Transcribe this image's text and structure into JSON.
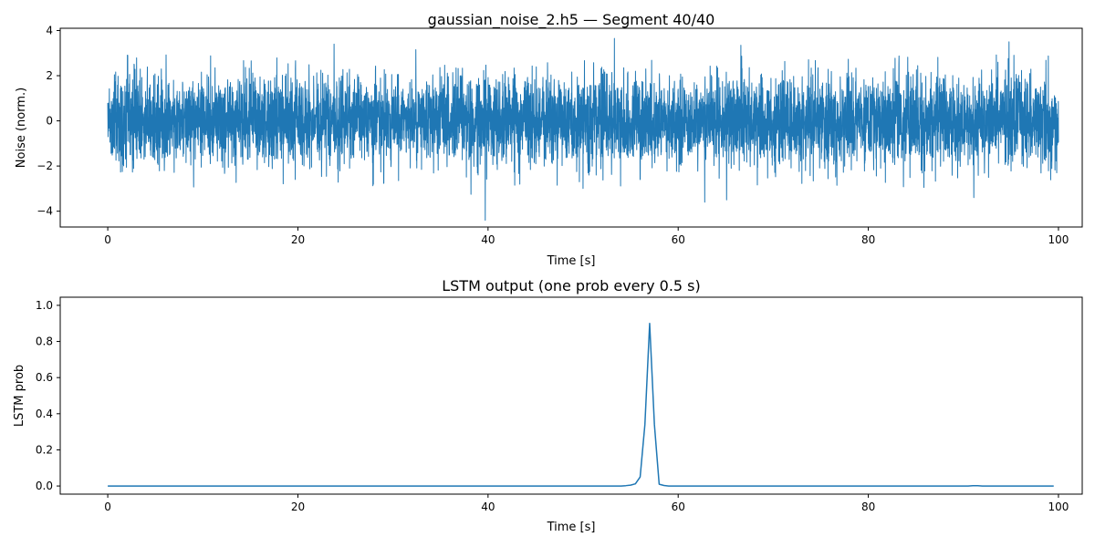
{
  "chart_data": [
    {
      "type": "line",
      "title": "gaussian_noise_2.h5 — Segment 40/40",
      "xlabel": "Time [s]",
      "ylabel": "Noise (norm.)",
      "xlim": [
        -5,
        102.5
      ],
      "ylim": [
        -4.7,
        4.1
      ],
      "xticks": [
        0,
        20,
        40,
        60,
        80,
        100
      ],
      "yticks": [
        -4,
        -2,
        0,
        2,
        4
      ],
      "grid": false,
      "color": "#1f77b4",
      "series": [
        {
          "noise_std": 1.0,
          "x_range": [
            0,
            100
          ],
          "spikes": [
            {
              "x": 39.7,
              "y": -4.4
            },
            {
              "x": 53.3,
              "y": 3.65
            },
            {
              "x": 23.8,
              "y": 3.4
            },
            {
              "x": 94.8,
              "y": 3.5
            },
            {
              "x": 62.8,
              "y": -3.6
            },
            {
              "x": 65.1,
              "y": -3.5
            },
            {
              "x": 91.1,
              "y": -3.4
            },
            {
              "x": 38.2,
              "y": -3.25
            },
            {
              "x": 66.6,
              "y": 3.35
            },
            {
              "x": 32.4,
              "y": 3.15
            }
          ]
        }
      ]
    },
    {
      "type": "line",
      "title": "LSTM output (one prob every 0.5 s)",
      "xlabel": "Time [s]",
      "ylabel": "LSTM prob",
      "xlim": [
        -5,
        102.5
      ],
      "ylim": [
        -0.045,
        1.045
      ],
      "xticks": [
        0,
        20,
        40,
        60,
        80,
        100
      ],
      "yticks": [
        0.0,
        0.2,
        0.4,
        0.6,
        0.8,
        1.0
      ],
      "grid": false,
      "color": "#1f77b4",
      "series": [
        {
          "x": [
            0,
            54,
            54.5,
            55,
            55.5,
            56,
            56.5,
            57,
            57.5,
            58,
            58.5,
            59,
            90.5,
            91,
            91.5,
            92,
            99.5
          ],
          "y": [
            0.0,
            0.0,
            0.002,
            0.005,
            0.012,
            0.05,
            0.34,
            0.9,
            0.34,
            0.01,
            0.003,
            0.0,
            0.0,
            0.002,
            0.002,
            0.0,
            0.0
          ]
        }
      ]
    }
  ]
}
